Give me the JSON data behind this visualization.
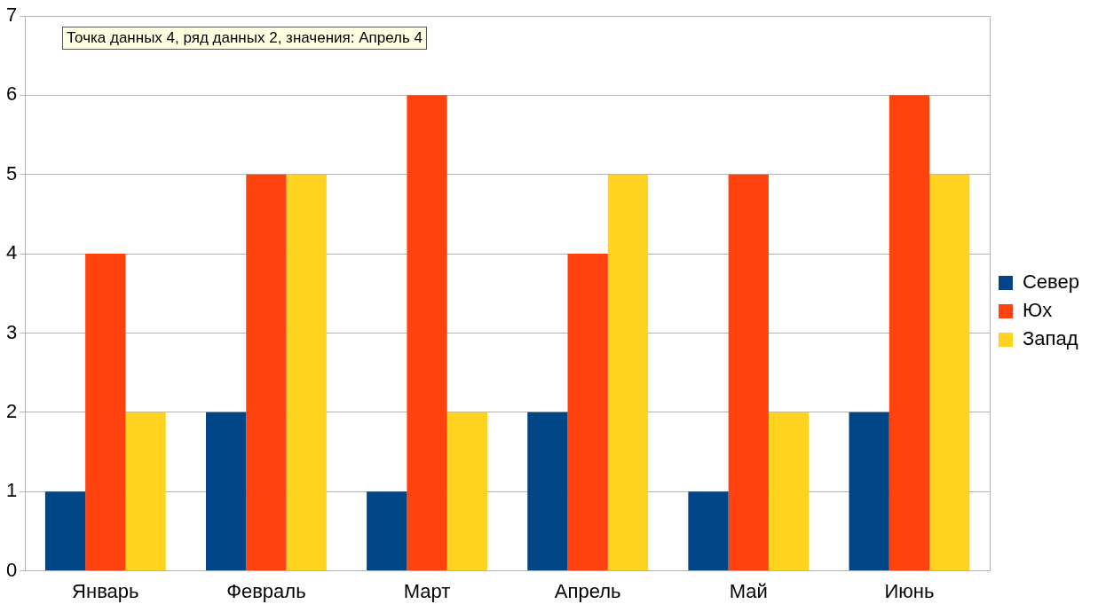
{
  "chart_data": {
    "type": "bar",
    "categories": [
      "Январь",
      "Февраль",
      "Март",
      "Апрель",
      "Май",
      "Июнь"
    ],
    "series": [
      {
        "name": "Север",
        "color": "#004586",
        "values": [
          1,
          2,
          1,
          2,
          1,
          2
        ]
      },
      {
        "name": "Юх",
        "color": "#ff420e",
        "values": [
          4,
          5,
          6,
          4,
          5,
          6
        ]
      },
      {
        "name": "Запад",
        "color": "#ffd320",
        "values": [
          2,
          5,
          2,
          5,
          2,
          5
        ]
      }
    ],
    "ylim": [
      0,
      7
    ],
    "yticks": [
      0,
      1,
      2,
      3,
      4,
      5,
      6,
      7
    ],
    "grid": "y",
    "legend": "right",
    "annotations": [
      "Точка данных 4, ряд данных 2, значения: Апрель 4"
    ]
  }
}
